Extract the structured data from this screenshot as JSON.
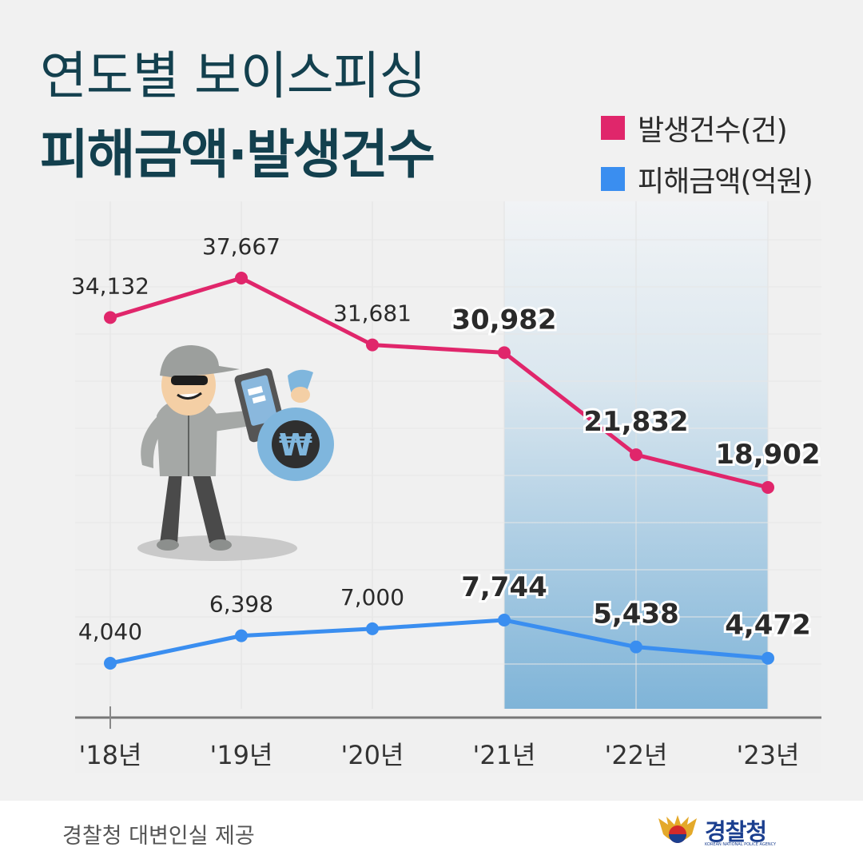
{
  "title": {
    "line1": "연도별 보이스피싱",
    "line2": "피해금액·발생건수"
  },
  "legend": [
    {
      "label": "발생건수(건)",
      "color": "#e0266b"
    },
    {
      "label": "피해금액(억원)",
      "color": "#3a8ef0"
    }
  ],
  "footer": {
    "credit": "경찰청 대변인실 제공",
    "logo_name": "경찰청",
    "logo_english": "KOREAN NATIONAL POLICE AGENCY"
  },
  "illustration": {
    "currency_symbol": "₩"
  },
  "chart_data": {
    "type": "line",
    "categories": [
      "'18년",
      "'19년",
      "'20년",
      "'21년",
      "'22년",
      "'23년"
    ],
    "series": [
      {
        "name": "발생건수(건)",
        "color": "#e0266b",
        "values": [
          34132,
          37667,
          31681,
          30982,
          21832,
          18902
        ],
        "labels": [
          "34,132",
          "37,667",
          "31,681",
          "30,982",
          "21,832",
          "18,902"
        ]
      },
      {
        "name": "피해금액(억원)",
        "color": "#3a8ef0",
        "values": [
          4040,
          6398,
          7000,
          7744,
          5438,
          4472
        ],
        "labels": [
          "4,040",
          "6,398",
          "7,000",
          "7,744",
          "5,438",
          "4,472"
        ]
      }
    ],
    "highlight_categories": [
      "'21년",
      "'22년",
      "'23년"
    ],
    "grid": true,
    "legend_position": "top-right"
  }
}
